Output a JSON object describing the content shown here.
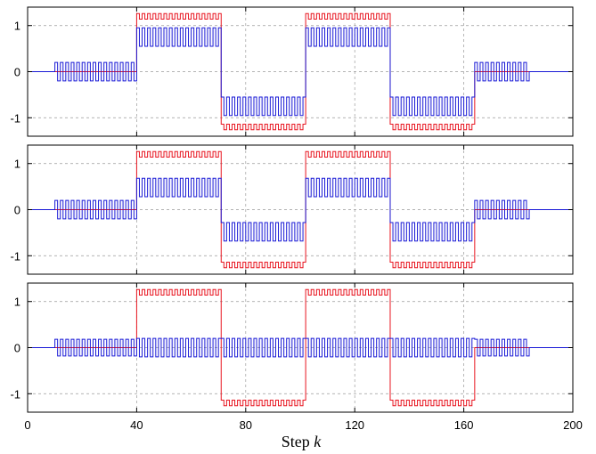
{
  "chart_data": [
    {
      "type": "line",
      "xlim": [
        0,
        200
      ],
      "ylim": [
        -1.4,
        1.4
      ],
      "yticks": [
        1,
        0,
        -1
      ],
      "ytick_labels": [
        "1",
        "0",
        "-1"
      ],
      "grid": true,
      "x_breakpoints": [
        0,
        10,
        40,
        71,
        102,
        133,
        164,
        184,
        200
      ],
      "series": [
        {
          "color": "#e8141f",
          "style": "square-wave",
          "levels": [
            0,
            0,
            1.2,
            -1.2,
            1.2,
            -1.2,
            0,
            0
          ],
          "amplitude": [
            0,
            0,
            0.06,
            0.06,
            0.06,
            0.06,
            0,
            0
          ]
        },
        {
          "color": "#1a1ad6",
          "style": "square-wave",
          "levels": [
            0,
            0,
            0.75,
            -0.75,
            0.75,
            -0.75,
            0,
            0
          ],
          "amplitude": [
            0,
            0.2,
            0.2,
            0.2,
            0.2,
            0.2,
            0.2,
            0
          ]
        }
      ]
    },
    {
      "type": "line",
      "xlim": [
        0,
        200
      ],
      "ylim": [
        -1.4,
        1.4
      ],
      "yticks": [
        1,
        0,
        -1
      ],
      "ytick_labels": [
        "1",
        "0",
        "-1"
      ],
      "grid": true,
      "x_breakpoints": [
        0,
        10,
        40,
        71,
        102,
        133,
        164,
        184,
        200
      ],
      "series": [
        {
          "color": "#e8141f",
          "style": "square-wave",
          "levels": [
            0,
            0,
            1.2,
            -1.2,
            1.2,
            -1.2,
            0,
            0
          ],
          "amplitude": [
            0,
            0,
            0.06,
            0.06,
            0.06,
            0.06,
            0,
            0
          ]
        },
        {
          "color": "#1a1ad6",
          "style": "square-wave",
          "levels": [
            0,
            0,
            0.48,
            -0.48,
            0.48,
            -0.48,
            0,
            0
          ],
          "amplitude": [
            0,
            0.2,
            0.2,
            0.2,
            0.2,
            0.2,
            0.2,
            0
          ]
        }
      ]
    },
    {
      "type": "line",
      "xlim": [
        0,
        200
      ],
      "ylim": [
        -1.4,
        1.4
      ],
      "yticks": [
        1,
        0,
        -1
      ],
      "ytick_labels": [
        "1",
        "0",
        "-1"
      ],
      "grid": true,
      "x_breakpoints": [
        0,
        10,
        40,
        71,
        102,
        133,
        164,
        184,
        200
      ],
      "series": [
        {
          "color": "#e8141f",
          "style": "square-wave",
          "levels": [
            0,
            0,
            1.2,
            -1.2,
            1.2,
            -1.2,
            0,
            0
          ],
          "amplitude": [
            0,
            0,
            0.06,
            0.06,
            0.06,
            0.06,
            0,
            0
          ]
        },
        {
          "color": "#1a1ad6",
          "style": "square-wave",
          "levels": [
            0,
            0,
            0,
            0,
            0,
            0,
            0,
            0
          ],
          "amplitude": [
            0,
            0.18,
            0.2,
            0.2,
            0.2,
            0.2,
            0.18,
            0
          ]
        }
      ]
    }
  ],
  "xaxis": {
    "ticks": [
      0,
      40,
      80,
      120,
      160,
      200
    ],
    "tick_labels": [
      "0",
      "40",
      "80",
      "120",
      "160",
      "200"
    ],
    "label_prefix": "Step",
    "label_var": "k"
  }
}
